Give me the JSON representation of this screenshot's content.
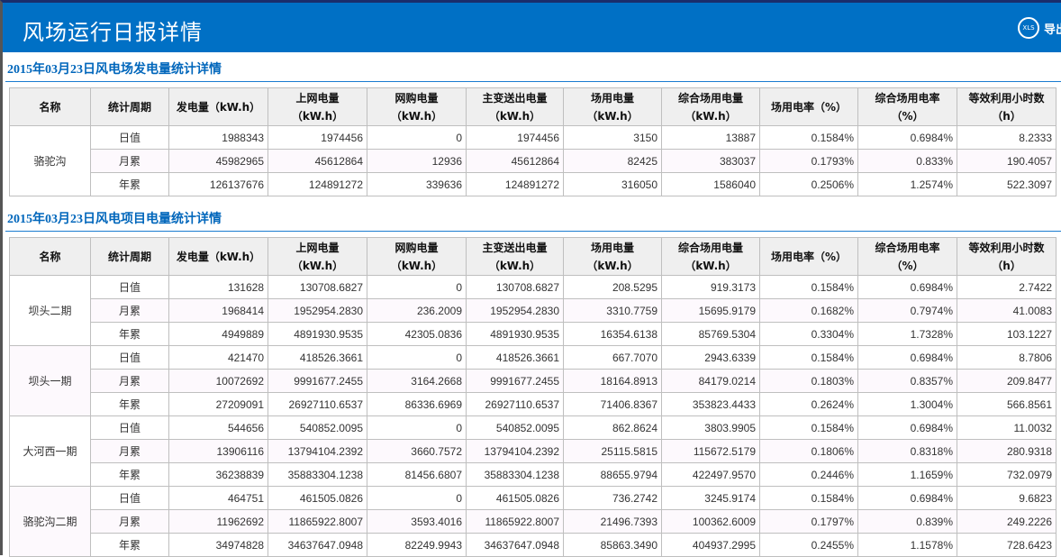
{
  "header": {
    "title": "风场运行日报详情",
    "export_icon": "XLS",
    "export_label": "导出"
  },
  "columns": [
    [
      "名称"
    ],
    [
      "统计周期"
    ],
    [
      "发电量（kW.h）"
    ],
    [
      "上网电量",
      "（kW.h）"
    ],
    [
      "网购电量",
      "（kW.h）"
    ],
    [
      "主变送出电量",
      "（kW.h）"
    ],
    [
      "场用电量",
      "（kW.h）"
    ],
    [
      "综合场用电量",
      "（kW.h）"
    ],
    [
      "场用电率（%）"
    ],
    [
      "综合场用电率",
      "（%）"
    ],
    [
      "等效利用小时数",
      "（h）"
    ]
  ],
  "sections": [
    {
      "title": "2015年03月23日风电场发电量统计详情",
      "groups": [
        {
          "name": "骆驼沟",
          "rows": [
            [
              "日值",
              "1988343",
              "1974456",
              "0",
              "1974456",
              "3150",
              "13887",
              "0.1584%",
              "0.6984%",
              "8.2333"
            ],
            [
              "月累",
              "45982965",
              "45612864",
              "12936",
              "45612864",
              "82425",
              "383037",
              "0.1793%",
              "0.833%",
              "190.4057"
            ],
            [
              "年累",
              "126137676",
              "124891272",
              "339636",
              "124891272",
              "316050",
              "1586040",
              "0.2506%",
              "1.2574%",
              "522.3097"
            ]
          ]
        }
      ]
    },
    {
      "title": "2015年03月23日风电项目电量统计详情",
      "groups": [
        {
          "name": "坝头二期",
          "rows": [
            [
              "日值",
              "131628",
              "130708.6827",
              "0",
              "130708.6827",
              "208.5295",
              "919.3173",
              "0.1584%",
              "0.6984%",
              "2.7422"
            ],
            [
              "月累",
              "1968414",
              "1952954.2830",
              "236.2009",
              "1952954.2830",
              "3310.7759",
              "15695.9179",
              "0.1682%",
              "0.7974%",
              "41.0083"
            ],
            [
              "年累",
              "4949889",
              "4891930.9535",
              "42305.0836",
              "4891930.9535",
              "16354.6138",
              "85769.5304",
              "0.3304%",
              "1.7328%",
              "103.1227"
            ]
          ]
        },
        {
          "name": "坝头一期",
          "rows": [
            [
              "日值",
              "421470",
              "418526.3661",
              "0",
              "418526.3661",
              "667.7070",
              "2943.6339",
              "0.1584%",
              "0.6984%",
              "8.7806"
            ],
            [
              "月累",
              "10072692",
              "9991677.2455",
              "3164.2668",
              "9991677.2455",
              "18164.8913",
              "84179.0214",
              "0.1803%",
              "0.8357%",
              "209.8477"
            ],
            [
              "年累",
              "27209091",
              "26927110.6537",
              "86336.6969",
              "26927110.6537",
              "71406.8367",
              "353823.4433",
              "0.2624%",
              "1.3004%",
              "566.8561"
            ]
          ]
        },
        {
          "name": "大河西一期",
          "rows": [
            [
              "日值",
              "544656",
              "540852.0095",
              "0",
              "540852.0095",
              "862.8624",
              "3803.9905",
              "0.1584%",
              "0.6984%",
              "11.0032"
            ],
            [
              "月累",
              "13906116",
              "13794104.2392",
              "3660.7572",
              "13794104.2392",
              "25115.5815",
              "115672.5179",
              "0.1806%",
              "0.8318%",
              "280.9318"
            ],
            [
              "年累",
              "36238839",
              "35883304.1238",
              "81456.6807",
              "35883304.1238",
              "88655.9794",
              "422497.9570",
              "0.2446%",
              "1.1659%",
              "732.0979"
            ]
          ]
        },
        {
          "name": "骆驼沟二期",
          "rows": [
            [
              "日值",
              "464751",
              "461505.0826",
              "0",
              "461505.0826",
              "736.2742",
              "3245.9174",
              "0.1584%",
              "0.6984%",
              "9.6823"
            ],
            [
              "月累",
              "11962692",
              "11865922.8007",
              "3593.4016",
              "11865922.8007",
              "21496.7393",
              "100362.6009",
              "0.1797%",
              "0.839%",
              "249.2226"
            ],
            [
              "年累",
              "34974828",
              "34637647.0948",
              "82249.9943",
              "34637647.0948",
              "85863.3490",
              "404937.2995",
              "0.2455%",
              "1.1578%",
              "728.6423"
            ]
          ]
        }
      ]
    }
  ],
  "colors": {
    "header_bg": "#0070c5",
    "section_title": "#0066bb",
    "alt_row": "#fdf9fd"
  }
}
